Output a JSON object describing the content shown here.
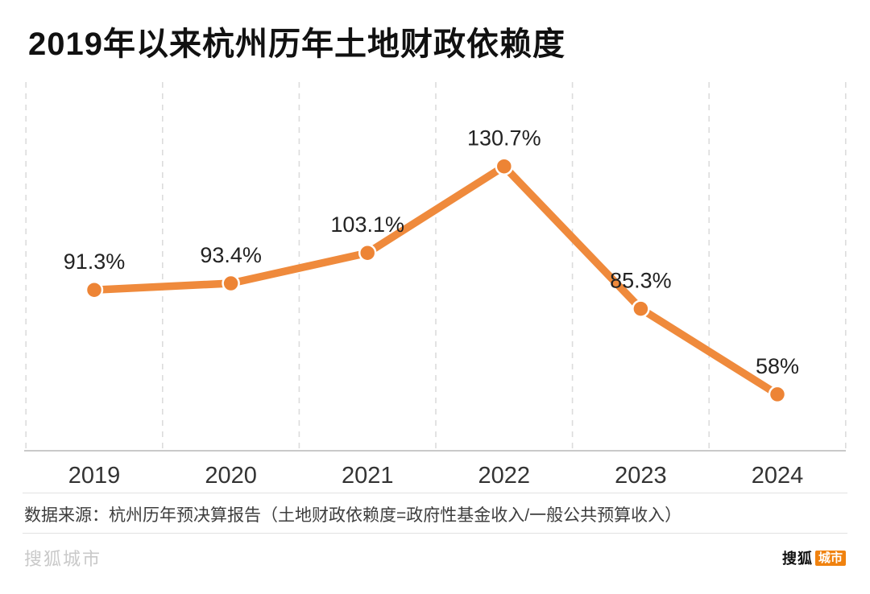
{
  "chart_data": {
    "type": "line",
    "title": "2019年以来杭州历年土地财政依赖度",
    "categories": [
      "2019",
      "2020",
      "2021",
      "2022",
      "2023",
      "2024"
    ],
    "values": [
      91.3,
      93.4,
      103.1,
      130.7,
      85.3,
      58
    ],
    "point_labels": [
      "91.3%",
      "93.4%",
      "103.1%",
      "130.7%",
      "85.3%",
      "58%"
    ],
    "xlabel": "",
    "ylabel": "",
    "ylim": [
      40,
      135
    ],
    "legend": "none",
    "grid": "vertical dashed lines at category midpoints",
    "line_color": "#ef8a3c",
    "marker_color": "#ed8435",
    "label_color": "#222222",
    "tick_color": "#333333",
    "axis_color": "#c9c9c9",
    "grid_color": "#dcdcdc"
  },
  "footer": {
    "source": "数据来源：杭州历年预决算报告（土地财政依赖度=政府性基金收入/一般公共预算收入）",
    "watermark": "搜狐城市",
    "logo_primary": "搜狐",
    "logo_secondary": "城市"
  }
}
